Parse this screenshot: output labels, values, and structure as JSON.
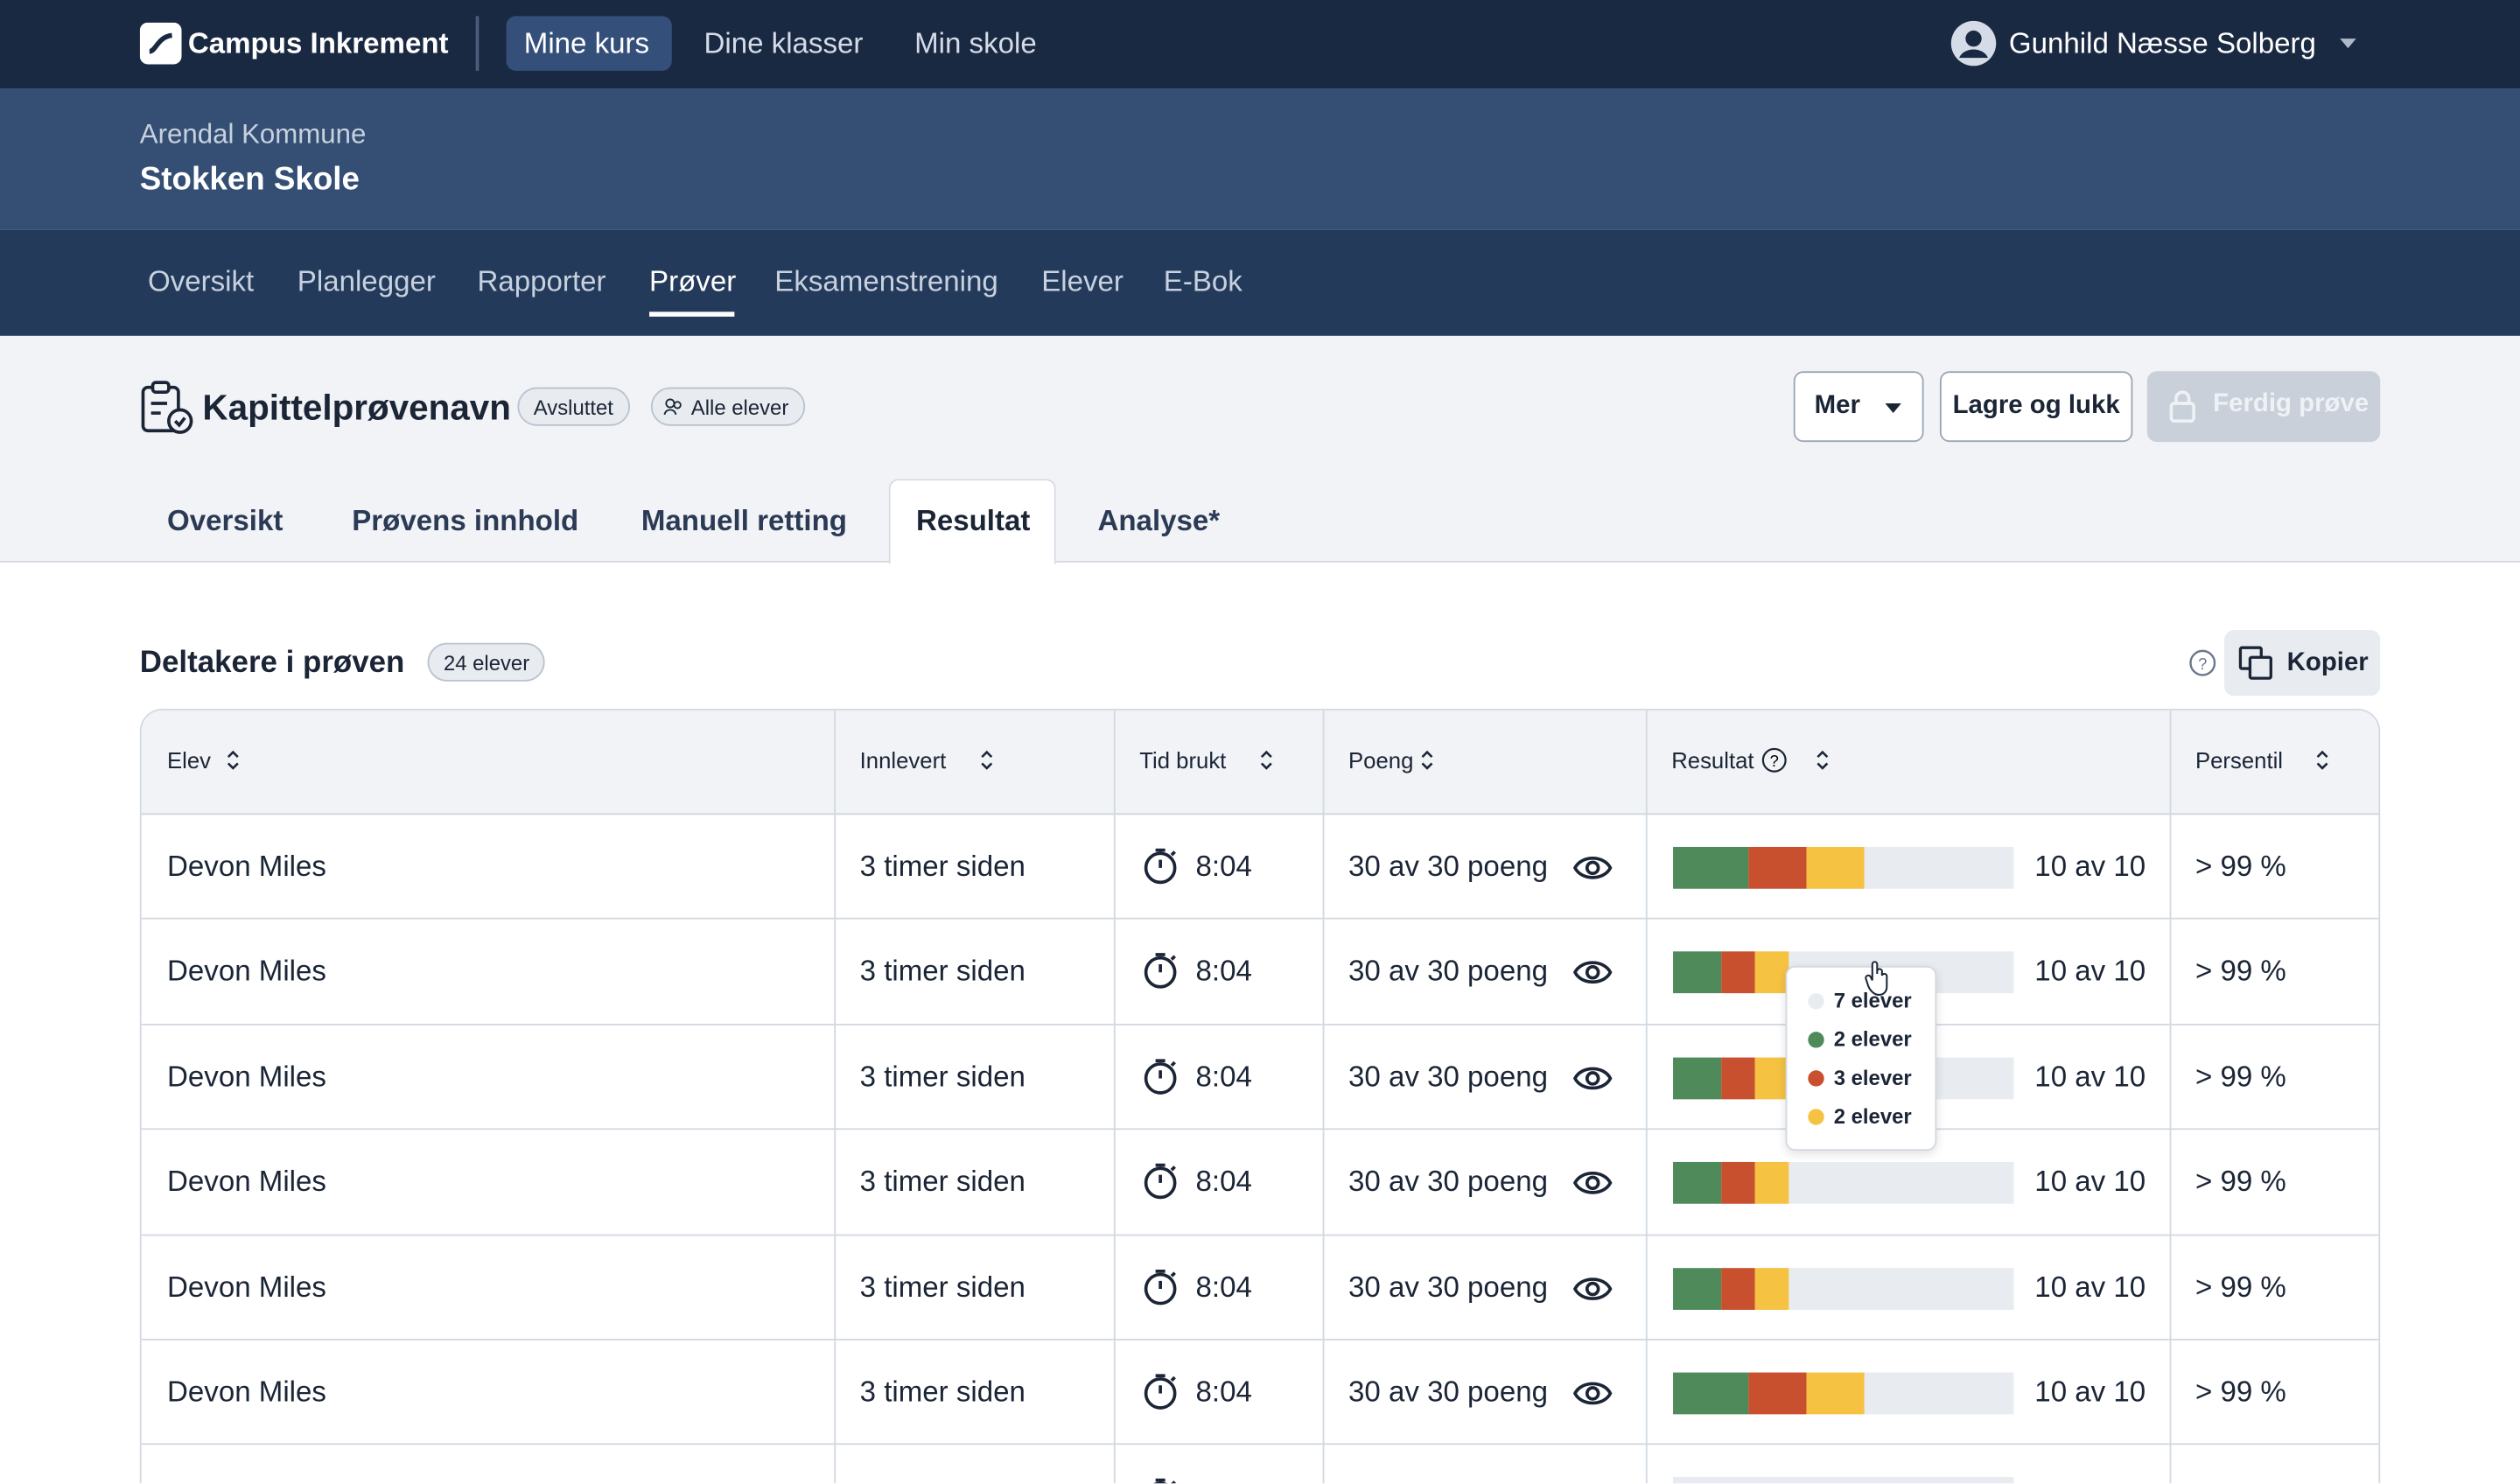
{
  "nav": {
    "brand": "Campus Inkrement",
    "links": [
      "Mine kurs",
      "Dine klasser",
      "Min skole"
    ],
    "user": "Gunhild Næsse Solberg"
  },
  "school": {
    "municipality": "Arendal Kommune",
    "name": "Stokken Skole"
  },
  "section_tabs": [
    "Oversikt",
    "Planlegger",
    "Rapporter",
    "Prøver",
    "Eksamenstrening",
    "Elever",
    "E-Bok"
  ],
  "test": {
    "title": "Kapittelprøvenavn",
    "status": "Avsluttet",
    "audience": "Alle elever",
    "actions": [
      "Mer",
      "Lagre og lukk",
      "Ferdig prøve"
    ]
  },
  "test_tabs": [
    "Oversikt",
    "Prøvens innhold",
    "Manuell retting",
    "Resultat",
    "Analyse*"
  ],
  "participants": {
    "title": "Deltakere i prøven",
    "count": "24 elever",
    "copy": "Kopier"
  },
  "table": {
    "columns": [
      "Elev",
      "Innlevert",
      "Tid brukt",
      "Poeng",
      "Resultat",
      "Persentil"
    ],
    "rows": [
      {
        "name": "Devon Miles",
        "submitted": "3 timer siden",
        "time": "8:04",
        "points": "30 av 30 poeng",
        "result_bar": [
          22,
          17,
          17
        ],
        "result": "10 av 10",
        "percentile": "> 99 %"
      },
      {
        "name": "Devon Miles",
        "submitted": "3 timer siden",
        "time": "8:04",
        "points": "30 av 30 poeng",
        "result_bar": [
          14,
          10,
          10
        ],
        "result": "10 av 10",
        "percentile": "> 99 %"
      },
      {
        "name": "Devon Miles",
        "submitted": "3 timer siden",
        "time": "8:04",
        "points": "30 av 30 poeng",
        "result_bar": [
          14,
          10,
          10
        ],
        "result": "10 av 10",
        "percentile": "> 99 %"
      },
      {
        "name": "Devon Miles",
        "submitted": "3 timer siden",
        "time": "8:04",
        "points": "30 av 30 poeng",
        "result_bar": [
          14,
          10,
          10
        ],
        "result": "10 av 10",
        "percentile": "> 99 %"
      },
      {
        "name": "Devon Miles",
        "submitted": "3 timer siden",
        "time": "8:04",
        "points": "30 av 30 poeng",
        "result_bar": [
          14,
          10,
          10
        ],
        "result": "10 av 10",
        "percentile": "> 99 %"
      },
      {
        "name": "Devon Miles",
        "submitted": "3 timer siden",
        "time": "8:04",
        "points": "30 av 30 poeng",
        "result_bar": [
          22,
          17,
          17
        ],
        "result": "10 av 10",
        "percentile": "> 99 %"
      }
    ]
  },
  "tooltip": [
    "7 elever",
    "2 elever",
    "3 elever",
    "2 elever"
  ]
}
